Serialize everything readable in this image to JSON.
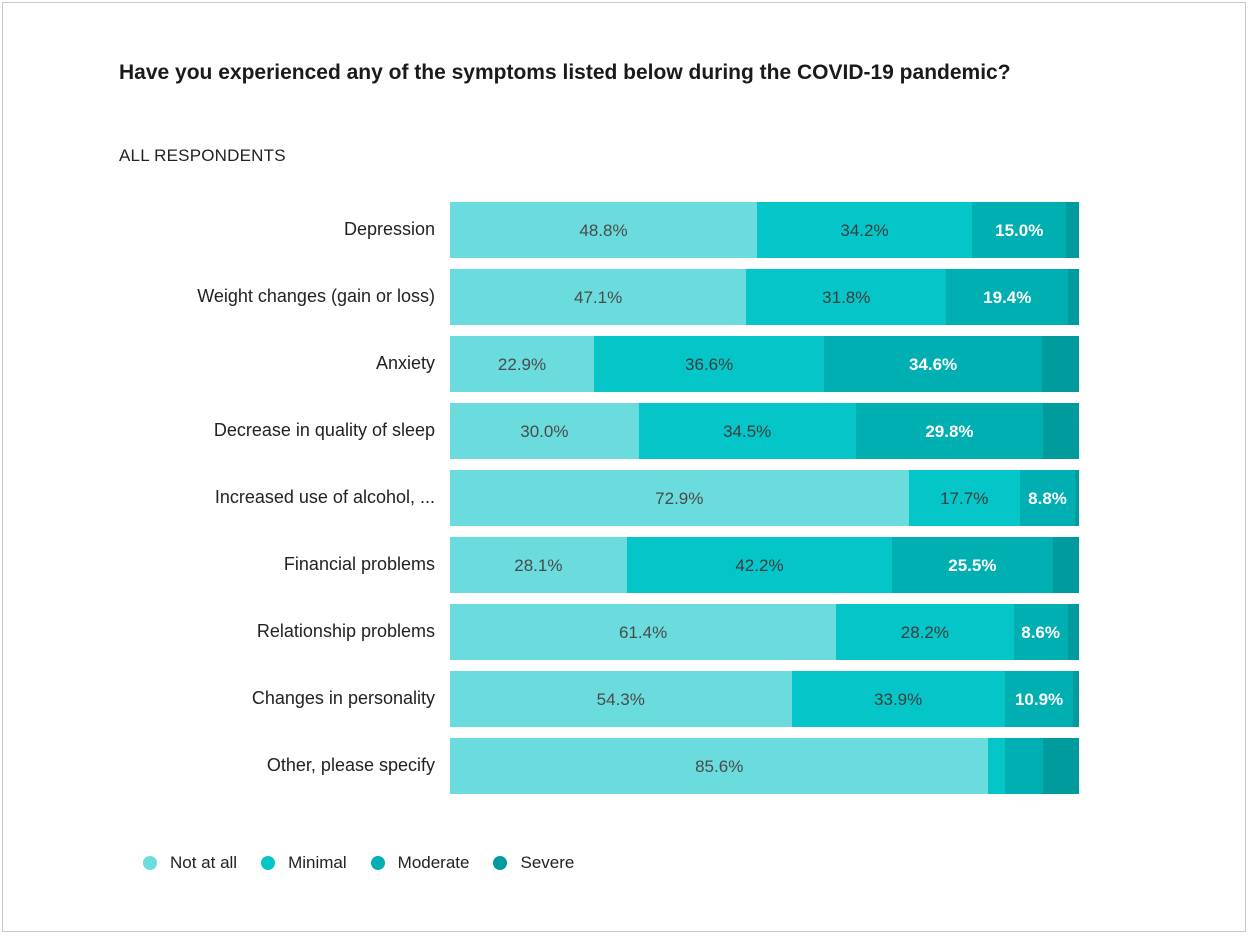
{
  "title": "Have you experienced any of the symptoms listed below during the COVID-19 pandemic?",
  "subtitle": "ALL RESPONDENTS",
  "chart_data": {
    "type": "bar",
    "orientation": "horizontal",
    "stacked": true,
    "title": "Have you experienced any of the symptoms listed below during the COVID-19 pandemic?",
    "subtitle": "ALL RESPONDENTS",
    "xlim": [
      0,
      100
    ],
    "grid": false,
    "legend_position": "bottom-left",
    "categories": [
      "Depression",
      "Weight changes (gain or loss)",
      "Anxiety",
      "Decrease in quality of sleep",
      "Increased use of alcohol, ...",
      "Financial problems",
      "Relationship problems",
      "Changes in personality",
      "Other, please specify"
    ],
    "series": [
      {
        "name": "Not at all",
        "color": "#6adcdd",
        "label_color": "#4a4a4a",
        "values": [
          48.8,
          47.1,
          22.9,
          30.0,
          72.9,
          28.1,
          61.4,
          54.3,
          85.6
        ]
      },
      {
        "name": "Minimal",
        "color": "#04c5c8",
        "label_color": "#3d3d3d",
        "values": [
          34.2,
          31.8,
          36.6,
          34.5,
          17.7,
          42.2,
          28.2,
          33.9,
          2.6
        ]
      },
      {
        "name": "Moderate",
        "color": "#00afb1",
        "label_color": "#ffffff",
        "values": [
          15.0,
          19.4,
          34.6,
          29.8,
          8.8,
          25.5,
          8.6,
          10.9,
          6.1
        ]
      },
      {
        "name": "Severe",
        "color": "#009b9c",
        "label_color": "#ffffff",
        "values": [
          2.0,
          1.7,
          5.9,
          5.7,
          0.6,
          4.2,
          1.8,
          0.9,
          5.7
        ]
      }
    ],
    "data_labels": [
      [
        "48.8%",
        "34.2%",
        "15.0%",
        ""
      ],
      [
        "47.1%",
        "31.8%",
        "19.4%",
        ""
      ],
      [
        "22.9%",
        "36.6%",
        "34.6%",
        ""
      ],
      [
        "30.0%",
        "34.5%",
        "29.8%",
        ""
      ],
      [
        "72.9%",
        "17.7%",
        "8.8%",
        ""
      ],
      [
        "28.1%",
        "42.2%",
        "25.5%",
        ""
      ],
      [
        "61.4%",
        "28.2%",
        "8.6%",
        ""
      ],
      [
        "54.3%",
        "33.9%",
        "10.9%",
        ""
      ],
      [
        "85.6%",
        "",
        "",
        ""
      ]
    ]
  }
}
